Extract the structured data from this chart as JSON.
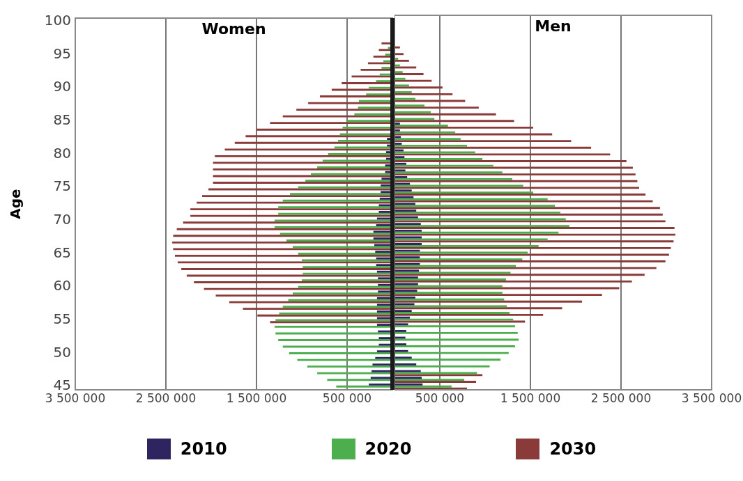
{
  "chart_data": [
    {
      "type": "bar",
      "orientation": "horizontal",
      "ylabel": "Age",
      "annotations": [
        "Women"
      ],
      "categories": [
        "100",
        null,
        null,
        null,
        null,
        "95",
        null,
        null,
        null,
        null,
        "90",
        null,
        null,
        null,
        null,
        "85",
        null,
        null,
        null,
        null,
        "80",
        null,
        null,
        null,
        null,
        "75",
        null,
        null,
        null,
        null,
        "70",
        null,
        null,
        null,
        null,
        "65",
        null,
        null,
        null,
        null,
        "60",
        null,
        null,
        null,
        null,
        "55",
        null,
        null,
        null,
        null,
        "50",
        null,
        null,
        null,
        null,
        "45"
      ],
      "xlim": [
        3500000,
        0
      ],
      "xticks": [
        {
          "value": 3500000,
          "label": "3 500 000"
        },
        {
          "value": 2500000,
          "label": "2 500 000"
        },
        {
          "value": 1500000,
          "label": "1 500 000"
        },
        {
          "value": 500000,
          "label": "500 000"
        }
      ],
      "grid": "x",
      "legend": "bottom",
      "ref_lines": [
        {
          "axis": "x",
          "value": 0,
          "color": "#1a1a1a"
        }
      ],
      "series": [
        {
          "name": "2010",
          "color": "#2e2560",
          "values": [
            null,
            null,
            null,
            null,
            null,
            null,
            null,
            null,
            null,
            null,
            null,
            null,
            null,
            null,
            null,
            null,
            null,
            null,
            60000,
            60000,
            70000,
            70000,
            80000,
            80000,
            120000,
            130000,
            130000,
            140000,
            150000,
            150000,
            170000,
            180000,
            210000,
            210000,
            200000,
            190000,
            180000,
            180000,
            170000,
            160000,
            160000,
            160000,
            170000,
            170000,
            170000,
            170000,
            170000,
            160000,
            150000,
            150000,
            170000,
            190000,
            220000,
            230000,
            240000,
            260000
          ]
        },
        {
          "name": "2020",
          "color": "#4cae4c",
          "values": [
            null,
            null,
            null,
            null,
            50000,
            80000,
            100000,
            120000,
            140000,
            180000,
            260000,
            290000,
            370000,
            380000,
            420000,
            510000,
            550000,
            580000,
            600000,
            640000,
            710000,
            770000,
            830000,
            900000,
            960000,
            1040000,
            1130000,
            1210000,
            1260000,
            1260000,
            1300000,
            1300000,
            1240000,
            1170000,
            1100000,
            1040000,
            1000000,
            990000,
            990000,
            1000000,
            1040000,
            1100000,
            1150000,
            1210000,
            1250000,
            1290000,
            1300000,
            1290000,
            1260000,
            1210000,
            1140000,
            1050000,
            940000,
            830000,
            720000,
            620000
          ]
        },
        {
          "name": "2030",
          "color": "#8b3a3a",
          "values": [
            null,
            null,
            null,
            120000,
            150000,
            210000,
            270000,
            350000,
            450000,
            560000,
            670000,
            800000,
            930000,
            1060000,
            1210000,
            1350000,
            1500000,
            1620000,
            1740000,
            1850000,
            1960000,
            1980000,
            1980000,
            1980000,
            1980000,
            2030000,
            2100000,
            2160000,
            2230000,
            2230000,
            2310000,
            2380000,
            2420000,
            2430000,
            2420000,
            2400000,
            2370000,
            2330000,
            2270000,
            2190000,
            2080000,
            1950000,
            1800000,
            1650000,
            1490000,
            1350000,
            null,
            null,
            null,
            null,
            null,
            null,
            null,
            null,
            null,
            null
          ]
        }
      ]
    },
    {
      "type": "bar",
      "orientation": "horizontal",
      "annotations": [
        "Men"
      ],
      "tick_labels": "x",
      "categories": [
        "100",
        null,
        null,
        null,
        null,
        "95",
        null,
        null,
        null,
        null,
        "90",
        null,
        null,
        null,
        null,
        "85",
        null,
        null,
        null,
        null,
        "80",
        null,
        null,
        null,
        null,
        "75",
        null,
        null,
        null,
        null,
        "70",
        null,
        null,
        null,
        null,
        "65",
        null,
        null,
        null,
        null,
        "60",
        null,
        null,
        null,
        null,
        "55",
        null,
        null,
        null,
        null,
        "50",
        null,
        null,
        null,
        null,
        "45"
      ],
      "xlim": [
        0,
        3500000
      ],
      "xticks": [
        {
          "value": 500000,
          "label": "500 000"
        },
        {
          "value": 1500000,
          "label": "1 500 000"
        },
        {
          "value": 2500000,
          "label": "2 500 000"
        },
        {
          "value": 3500000,
          "label": "3 500 000"
        }
      ],
      "grid": "x",
      "series": [
        {
          "name": "2010",
          "color": "#2e2560",
          "values": [
            null,
            null,
            null,
            null,
            null,
            null,
            null,
            null,
            null,
            null,
            null,
            null,
            null,
            null,
            null,
            null,
            60000,
            60000,
            70000,
            80000,
            100000,
            110000,
            130000,
            120000,
            140000,
            170000,
            190000,
            210000,
            230000,
            240000,
            260000,
            290000,
            300000,
            300000,
            300000,
            280000,
            280000,
            280000,
            270000,
            260000,
            260000,
            250000,
            230000,
            220000,
            190000,
            170000,
            150000,
            130000,
            120000,
            130000,
            150000,
            190000,
            240000,
            290000,
            300000,
            310000
          ]
        },
        {
          "name": "2020",
          "color": "#4cae4c",
          "values": [
            null,
            null,
            null,
            null,
            null,
            null,
            40000,
            60000,
            90000,
            120000,
            160000,
            190000,
            230000,
            330000,
            400000,
            440000,
            590000,
            670000,
            730000,
            800000,
            890000,
            970000,
            1090000,
            1190000,
            1300000,
            1420000,
            1530000,
            1690000,
            1770000,
            1830000,
            1890000,
            1930000,
            1810000,
            1690000,
            1590000,
            1470000,
            1410000,
            1340000,
            1280000,
            1230000,
            1190000,
            1190000,
            1210000,
            1240000,
            1270000,
            1310000,
            1330000,
            1360000,
            1370000,
            1330000,
            1260000,
            1170000,
            1050000,
            910000,
            770000,
            630000
          ]
        },
        {
          "name": "2030",
          "color": "#8b3a3a",
          "values": [
            null,
            null,
            null,
            null,
            60000,
            100000,
            160000,
            240000,
            320000,
            410000,
            530000,
            640000,
            780000,
            930000,
            1120000,
            1320000,
            1530000,
            1740000,
            1950000,
            2170000,
            2380000,
            2560000,
            2630000,
            2660000,
            2680000,
            2700000,
            2770000,
            2850000,
            2930000,
            2960000,
            2990000,
            3090000,
            3100000,
            3080000,
            3050000,
            3030000,
            2990000,
            2890000,
            2760000,
            2620000,
            2480000,
            2290000,
            2070000,
            1850000,
            1640000,
            1440000,
            null,
            null,
            null,
            null,
            null,
            null,
            null,
            970000,
            900000,
            800000
          ]
        }
      ]
    }
  ]
}
